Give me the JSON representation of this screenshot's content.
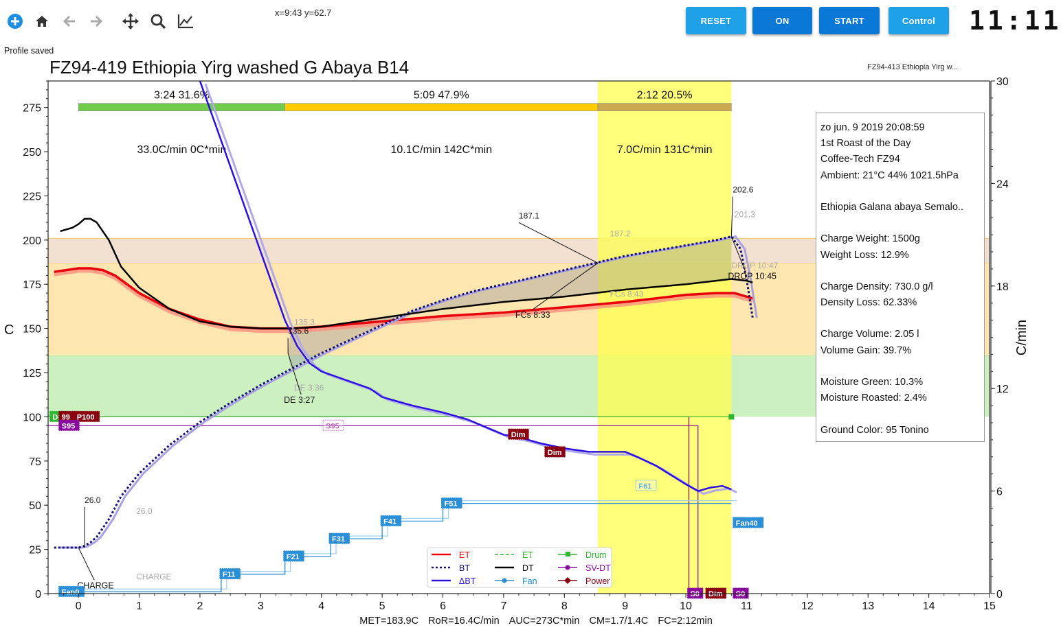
{
  "toolbar": {
    "coord_readout": "x=9:43 y=62.7",
    "buttons": [
      {
        "label": "RESET",
        "color": "#1ea1e6"
      },
      {
        "label": "ON",
        "color": "#0a78d6"
      },
      {
        "label": "START",
        "color": "#0a78d6"
      },
      {
        "label": "Control",
        "color": "#1ea1e6"
      }
    ],
    "clock": "11:11",
    "icons": [
      "add-icon",
      "home-icon",
      "back-arrow-icon",
      "forward-arrow-icon",
      "move-icon",
      "zoom-icon",
      "line-chart-icon"
    ]
  },
  "status": "Profile saved",
  "title": "FZ94-419 Ethiopia Yirg washed G Abaya B14",
  "background_title": "FZ94-413 Ethiopia Yirg w...",
  "footer": [
    "MET=183.9C",
    "RoR=16.4C/min",
    "AUC=273C*min",
    "CM=1.7/1.4C",
    "FC=2:12min"
  ],
  "info": [
    "zo jun. 9 2019 20:08:59",
    "1st Roast of the Day",
    "Coffee-Tech FZ94",
    "Ambient: 21°C  44% 1021.5hPa",
    "",
    "Ethiopia Galana abaya Semalo..",
    "",
    "Charge Weight: 1500g",
    "Weight Loss: 12.9%",
    "",
    "Charge Density: 730.0 g/l",
    "Density Loss: 62.33%",
    "",
    "Charge Volume: 2.05 l",
    "Volume Gain: 39.7%",
    "",
    "Moisture Green: 10.3%",
    "Moisture Roasted: 2.4%",
    "",
    "Ground Color: 95 Tonino"
  ],
  "chart_data": {
    "type": "line",
    "xlabel": "",
    "ylabel": "C",
    "y2label": "C/min",
    "xlim": [
      -0.5,
      15
    ],
    "ylim": [
      0,
      290
    ],
    "y2lim": [
      0,
      30
    ],
    "xticks": [
      0,
      1,
      2,
      3,
      4,
      5,
      6,
      7,
      8,
      9,
      10,
      11,
      12,
      13,
      14,
      15
    ],
    "yticks": [
      0,
      25,
      50,
      75,
      100,
      125,
      150,
      175,
      200,
      225,
      250,
      275
    ],
    "y2ticks": [
      0,
      6,
      12,
      18,
      24,
      30
    ],
    "colors": {
      "ET": "#e8000b",
      "BT": "#13107a",
      "DeltaBT": "#2b10e0",
      "DT": "#000000",
      "Fan": "#2a8fd6",
      "Drum": "#2eb82e",
      "SVDT": "#8a0aa0",
      "Power": "#8b0010",
      "phase_dry": "#70cc4a",
      "phase_mid": "#ffcc00",
      "phase_fin": "#c9a84f",
      "highlight": "#ffff50"
    },
    "phases": [
      {
        "label": "3:24  31.6%",
        "rate": "33.0C/min  0C*min",
        "x0": 0,
        "x1": 3.4,
        "color": "#70cc4a"
      },
      {
        "label": "5:09  47.9%",
        "rate": "10.1C/min  142C*min",
        "x0": 3.4,
        "x1": 8.55,
        "color": "#ffcc00"
      },
      {
        "label": "2:12  20.5%",
        "rate": "7.0C/min  131C*min",
        "x0": 8.55,
        "x1": 10.75,
        "color": "#c9a84f"
      }
    ],
    "bands": [
      {
        "y0": 100,
        "y1": 135,
        "color": "#cdf0c0"
      },
      {
        "y0": 135,
        "y1": 187,
        "color": "#fde6b0"
      },
      {
        "y0": 187,
        "y1": 201,
        "color": "#f2e0d0"
      }
    ],
    "highlight_x": [
      8.55,
      10.75
    ],
    "series": [
      {
        "name": "ET",
        "x": [
          -0.4,
          -0.2,
          0,
          0.2,
          0.4,
          0.6,
          0.8,
          1,
          1.5,
          2,
          2.5,
          3,
          3.5,
          4,
          5,
          6,
          7,
          8,
          9,
          9.5,
          10,
          10.5,
          10.8,
          11,
          11.1
        ],
        "y": [
          182,
          183,
          184,
          184,
          183,
          180,
          175,
          170,
          161,
          155,
          151,
          150,
          150,
          151,
          154,
          157,
          159,
          162,
          165,
          167,
          169,
          170,
          170,
          168,
          167
        ]
      },
      {
        "name": "BT",
        "x": [
          -0.4,
          -0.2,
          0,
          0.1,
          0.2,
          0.3,
          0.5,
          0.7,
          1,
          1.5,
          2,
          2.5,
          3,
          3.5,
          4,
          4.5,
          5,
          5.5,
          6,
          6.5,
          7,
          7.5,
          8,
          8.5,
          9,
          9.5,
          10,
          10.5,
          10.75,
          10.9,
          11,
          11.1
        ],
        "y": [
          26,
          26,
          26,
          27,
          29,
          32,
          42,
          55,
          68,
          84,
          97,
          108,
          118,
          127,
          136,
          144,
          152,
          160,
          166,
          171,
          175,
          179,
          183,
          187,
          191,
          194,
          197,
          200,
          202,
          195,
          178,
          156
        ]
      },
      {
        "name": "DT",
        "x": [
          -0.3,
          -0.1,
          0,
          0.1,
          0.2,
          0.3,
          0.5,
          0.7,
          1,
          1.5,
          2,
          2.5,
          3,
          3.5,
          4,
          5,
          6,
          7,
          8,
          9,
          10,
          10.5,
          10.75,
          11,
          11.1
        ],
        "y": [
          205,
          207,
          209,
          212,
          212,
          210,
          200,
          185,
          173,
          161,
          154,
          151,
          150,
          150,
          151,
          156,
          161,
          165,
          168,
          172,
          175,
          177,
          178,
          177,
          176
        ]
      },
      {
        "name": "DeltaBT",
        "axis": "y2",
        "x": [
          2,
          2.4,
          2.6,
          2.8,
          3,
          3.2,
          3.4,
          3.6,
          3.8,
          4,
          4.4,
          4.8,
          5,
          5.2,
          5.5,
          6,
          6.4,
          6.8,
          7,
          7.3,
          7.6,
          8,
          8.4,
          8.8,
          9,
          9.2,
          9.5,
          10,
          10.2,
          10.4,
          10.6,
          10.75
        ],
        "y": [
          30,
          26,
          24,
          22,
          20,
          18,
          16,
          14.5,
          13.5,
          13,
          12.5,
          12,
          11.5,
          11.3,
          11,
          10.6,
          10.2,
          9.6,
          9.3,
          9.1,
          8.8,
          8.5,
          8.3,
          8.3,
          8.3,
          8.0,
          7.5,
          6.4,
          6.0,
          6.2,
          6.3,
          6.1
        ]
      },
      {
        "name": "Fan",
        "x": [
          0,
          2.35,
          2.35,
          3.4,
          3.4,
          4.15,
          4.15,
          5,
          5,
          6,
          6,
          10.75
        ],
        "y": [
          1,
          1,
          11,
          11,
          21,
          21,
          31,
          31,
          41,
          41,
          51,
          51
        ]
      }
    ],
    "events": [
      {
        "label": "CHARGE",
        "x": 0,
        "y": 26
      },
      {
        "label": "DE 3:27",
        "x": 3.45,
        "y": 136
      },
      {
        "label": "FCs 8:33",
        "x": 8.55,
        "y": 187
      },
      {
        "label": "DROP 10:45",
        "x": 10.75,
        "y": 202
      }
    ],
    "annotations": [
      {
        "text": "26.0",
        "x": 0.1,
        "y": 26
      },
      {
        "text": "135.6",
        "x": 3.45,
        "y": 136
      },
      {
        "text": "187.1",
        "x": 8.55,
        "y": 187
      },
      {
        "text": "202.6",
        "x": 10.75,
        "y": 202
      }
    ],
    "ghost_annotations": [
      {
        "text": "26.0",
        "x": 0.95,
        "y": 45
      },
      {
        "text": "135.3",
        "x": 3.55,
        "y": 152
      },
      {
        "text": "187.2",
        "x": 8.75,
        "y": 202
      },
      {
        "text": "201.3",
        "x": 10.8,
        "y": 213
      },
      {
        "text": "CHARGE",
        "x": 0.95,
        "y": 8
      },
      {
        "text": "DE 3:36",
        "x": 3.55,
        "y": 115
      },
      {
        "text": "FCs 8:43",
        "x": 8.75,
        "y": 168
      },
      {
        "text": "DROP 10:47",
        "x": 10.75,
        "y": 184
      }
    ],
    "event_tags": [
      {
        "text": "Fan0",
        "x": -0.3,
        "y": 1,
        "color": "#2a8fd6"
      },
      {
        "text": "F11",
        "x": 2.35,
        "y": 11,
        "color": "#2a8fd6"
      },
      {
        "text": "F21",
        "x": 3.4,
        "y": 21,
        "color": "#2a8fd6"
      },
      {
        "text": "F31",
        "x": 4.15,
        "y": 31,
        "color": "#2a8fd6"
      },
      {
        "text": "F41",
        "x": 5,
        "y": 41,
        "color": "#2a8fd6"
      },
      {
        "text": "F51",
        "x": 6,
        "y": 51,
        "color": "#2a8fd6"
      },
      {
        "text": "Fan40",
        "x": 10.8,
        "y": 40,
        "color": "#2a8fd6"
      },
      {
        "text": "Dim",
        "x": 7.1,
        "y": 90,
        "color": "#8b0010"
      },
      {
        "text": "Dim",
        "x": 7.7,
        "y": 80,
        "color": "#8b0010"
      },
      {
        "text": "S0",
        "x": 10.05,
        "y": 0,
        "color": "#8a0aa0"
      },
      {
        "text": "Dim",
        "x": 10.35,
        "y": 0,
        "color": "#8b0010"
      },
      {
        "text": "S0",
        "x": 10.8,
        "y": 0,
        "color": "#8a0aa0"
      },
      {
        "text": "Dr",
        "x": -0.45,
        "y": 100,
        "color": "#2eb82e"
      },
      {
        "text": "99",
        "x": -0.3,
        "y": 100,
        "color": "#8b0010"
      },
      {
        "text": "P100",
        "x": -0.05,
        "y": 100,
        "color": "#8b0010"
      },
      {
        "text": "S95",
        "x": -0.3,
        "y": 95,
        "color": "#8a0aa0"
      }
    ],
    "ghost_tags": [
      {
        "text": "S95",
        "x": 4.05,
        "y": 95,
        "color": "#c060c0"
      },
      {
        "text": "F61",
        "x": 9.2,
        "y": 61,
        "color": "#60b0e8"
      }
    ],
    "control_lines": [
      {
        "name": "Power",
        "x": [
          -0.5,
          10.05,
          10.05
        ],
        "y": [
          100,
          100,
          0
        ],
        "color": "#8b0010"
      },
      {
        "name": "Drum",
        "x": [
          -0.5,
          10.75
        ],
        "y": [
          100,
          100
        ],
        "color": "#2eb82e"
      },
      {
        "name": "SV-DT",
        "x": [
          -0.5,
          4.05,
          10.2,
          10.2
        ],
        "y": [
          95,
          95,
          95,
          0
        ],
        "color": "#8a0aa0"
      }
    ],
    "legend": {
      "placement": "bottom-center",
      "entries": [
        {
          "label": "ET",
          "style": "line",
          "color": "#e8000b"
        },
        {
          "label": "ET",
          "style": "dashed",
          "color": "#2eb82e"
        },
        {
          "label": "Drum",
          "style": "square-marker",
          "color": "#2eb82e"
        },
        {
          "label": "BT",
          "style": "dotted",
          "color": "#13107a"
        },
        {
          "label": "DT",
          "style": "line",
          "color": "#000000"
        },
        {
          "label": "SV-DT",
          "style": "circle-marker",
          "color": "#8a0aa0"
        },
        {
          "label": "ΔBT",
          "style": "line",
          "color": "#2b10e0"
        },
        {
          "label": "Fan",
          "style": "circle-marker",
          "color": "#2a8fd6"
        },
        {
          "label": "Power",
          "style": "diamond-marker",
          "color": "#8b0010"
        }
      ]
    }
  }
}
